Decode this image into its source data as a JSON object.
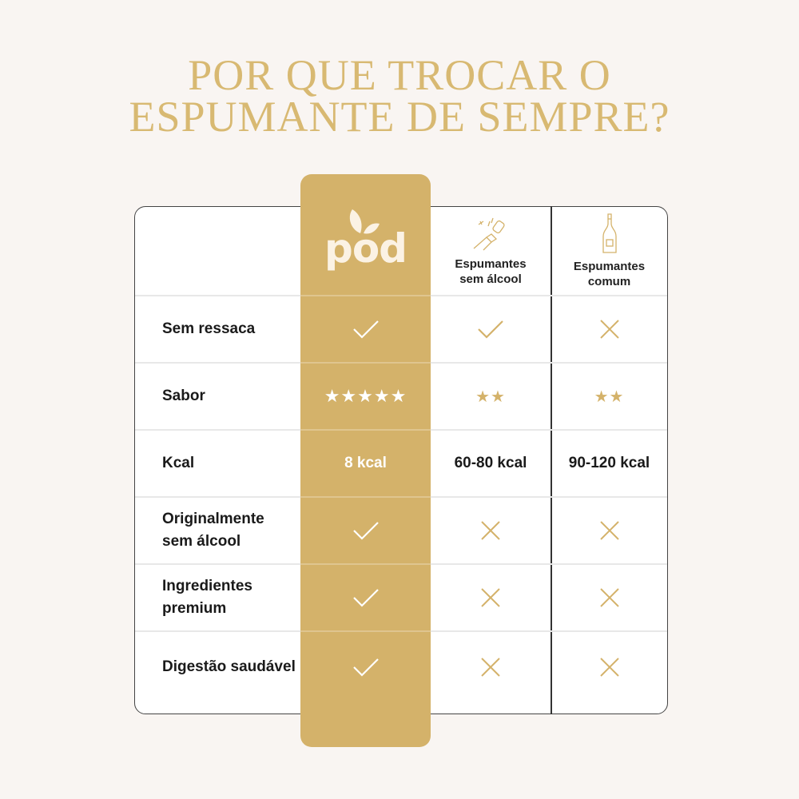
{
  "title": {
    "line1": "POR QUE TROCAR O",
    "line2": "ESPUMANTE DE SEMPRE?"
  },
  "colors": {
    "gold": "#d4b26a",
    "title": "#d8b972",
    "background": "#f9f5f2"
  },
  "columns": [
    {
      "logo_text": "pod",
      "icon": "leaf-logo-icon"
    },
    {
      "label_line1": "Espumantes",
      "label_line2": "sem álcool",
      "icon": "popping-cork-icon"
    },
    {
      "label_line1": "Espumantes",
      "label_line2": "comum",
      "icon": "champagne-bottle-icon"
    }
  ],
  "rows": [
    {
      "label": "Sem ressaca",
      "values": [
        "check",
        "check",
        "cross"
      ]
    },
    {
      "label": "Sabor",
      "values": [
        "★★★★★",
        "★★",
        "★★"
      ]
    },
    {
      "label": "Kcal",
      "values": [
        "8 kcal",
        "60-80 kcal",
        "90-120 kcal"
      ]
    },
    {
      "label": "Originalmente sem álcool",
      "values": [
        "check",
        "cross",
        "cross"
      ]
    },
    {
      "label": "Ingredientes premium",
      "values": [
        "check",
        "cross",
        "cross"
      ]
    },
    {
      "label": "Digestão saudável",
      "values": [
        "check",
        "cross",
        "cross"
      ]
    }
  ]
}
